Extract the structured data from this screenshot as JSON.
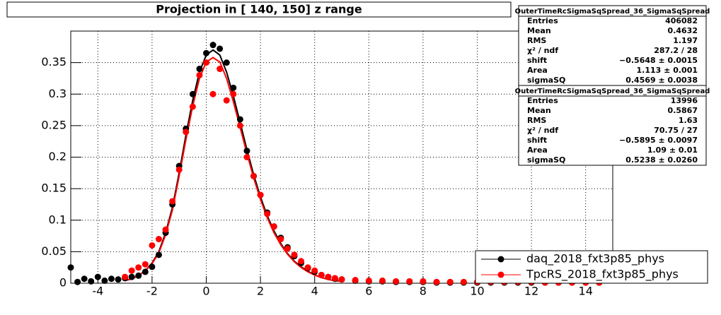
{
  "chart_data": {
    "type": "scatter",
    "title": "Projection in [ 140, 150] z range",
    "xlim": [
      -5,
      15
    ],
    "xticks": [
      -4,
      -2,
      0,
      2,
      4,
      6,
      8,
      10,
      12,
      14
    ],
    "ylim": [
      0,
      0.4
    ],
    "yticks": [
      0,
      0.05,
      0.1,
      0.15,
      0.2,
      0.25,
      0.3,
      0.35
    ],
    "grid": true,
    "legend": "bottom-right",
    "x": [
      -5,
      -4.75,
      -4.5,
      -4.25,
      -4,
      -3.75,
      -3.5,
      -3.25,
      -3,
      -2.75,
      -2.5,
      -2.25,
      -2,
      -1.75,
      -1.5,
      -1.25,
      -1,
      -0.75,
      -0.5,
      -0.25,
      0,
      0.25,
      0.5,
      0.75,
      1,
      1.25,
      1.5,
      1.75,
      2,
      2.25,
      2.5,
      2.75,
      3,
      3.25,
      3.5,
      3.75,
      4,
      4.25,
      4.5,
      4.75,
      5,
      5.5,
      6,
      6.5,
      7,
      7.5,
      8,
      8.5,
      9,
      9.5,
      10,
      10.5,
      11,
      11.5,
      12,
      12.5,
      13,
      13.5,
      14,
      14.5
    ],
    "series": [
      {
        "name": "daq_2018_fxt3p85_phys",
        "color": "#000000",
        "values": [
          0.025,
          0.002,
          0.007,
          0.003,
          0.01,
          0.004,
          0.007,
          0.006,
          0.008,
          0.01,
          0.012,
          0.018,
          0.026,
          0.045,
          0.08,
          0.125,
          0.186,
          0.245,
          0.3,
          0.34,
          0.365,
          0.378,
          0.372,
          0.35,
          0.31,
          0.26,
          0.21,
          0.17,
          0.14,
          0.112,
          0.09,
          0.072,
          0.057,
          0.043,
          0.032,
          0.024,
          0.018,
          0.013,
          0.01,
          0.007,
          0.006,
          0.004,
          0.003,
          0.003,
          0.002,
          0.002,
          0.002,
          0.001,
          0.001,
          0.001,
          0.001,
          0.001,
          0.001,
          0.001,
          0.001,
          0.001,
          0.001,
          0.001,
          0.001,
          0.001
        ]
      },
      {
        "name": "TpcRS_2018_fxt3p85_phys",
        "color": "#ff0000",
        "values": [
          null,
          null,
          null,
          null,
          null,
          null,
          null,
          null,
          0.01,
          0.02,
          0.025,
          0.03,
          0.06,
          0.07,
          0.085,
          0.13,
          0.18,
          0.24,
          0.28,
          0.33,
          0.35,
          0.3,
          0.34,
          0.29,
          0.3,
          0.25,
          0.2,
          0.17,
          0.14,
          0.11,
          0.09,
          0.07,
          0.055,
          0.045,
          0.035,
          0.025,
          0.02,
          0.013,
          0.01,
          0.008,
          0.006,
          0.005,
          0.004,
          0.004,
          0.003,
          0.003,
          0.003,
          0.002,
          0.002,
          0.002,
          0.002,
          0.002,
          0.002,
          0.002,
          0.002,
          0.001,
          0.001,
          0.001,
          0.001,
          0.001
        ]
      }
    ],
    "fits": [
      {
        "color": "#000000",
        "x": [
          -3,
          -2.75,
          -2.5,
          -2.25,
          -2,
          -1.75,
          -1.5,
          -1.25,
          -1,
          -0.75,
          -0.5,
          -0.25,
          0,
          0.25,
          0.5,
          0.75,
          1,
          1.25,
          1.5,
          1.75,
          2,
          2.25,
          2.5,
          2.75,
          3,
          3.25,
          3.5,
          3.75,
          4,
          4.25,
          4.5,
          4.75,
          5
        ],
        "values": [
          0.004,
          0.007,
          0.012,
          0.02,
          0.032,
          0.05,
          0.08,
          0.12,
          0.175,
          0.235,
          0.29,
          0.335,
          0.362,
          0.37,
          0.362,
          0.335,
          0.297,
          0.255,
          0.212,
          0.172,
          0.137,
          0.107,
          0.083,
          0.063,
          0.047,
          0.035,
          0.026,
          0.019,
          0.013,
          0.009,
          0.006,
          0.004,
          0.003
        ]
      },
      {
        "color": "#ff0000",
        "x": [
          -3,
          -2.75,
          -2.5,
          -2.25,
          -2,
          -1.75,
          -1.5,
          -1.25,
          -1,
          -0.75,
          -0.5,
          -0.25,
          0,
          0.25,
          0.5,
          0.75,
          1,
          1.25,
          1.5,
          1.75,
          2,
          2.25,
          2.5,
          2.75,
          3,
          3.25,
          3.5,
          3.75,
          4,
          4.25,
          4.5,
          4.75,
          5
        ],
        "values": [
          0.004,
          0.007,
          0.012,
          0.02,
          0.031,
          0.048,
          0.077,
          0.116,
          0.17,
          0.228,
          0.281,
          0.325,
          0.351,
          0.358,
          0.351,
          0.325,
          0.288,
          0.247,
          0.206,
          0.167,
          0.133,
          0.104,
          0.08,
          0.061,
          0.046,
          0.034,
          0.025,
          0.018,
          0.013,
          0.009,
          0.006,
          0.004,
          0.003
        ]
      }
    ]
  },
  "stats": [
    {
      "header": "OuterTimeRcSigmaSqSpread_36_SigmaSqSpread",
      "rows": [
        [
          "Entries",
          "406082"
        ],
        [
          "Mean",
          "0.4632"
        ],
        [
          "RMS",
          "1.197"
        ],
        [
          "χ² / ndf",
          "287.2 / 28"
        ],
        [
          "shift",
          "−0.5648 ± 0.0015"
        ],
        [
          "Area",
          "1.113 ± 0.001"
        ],
        [
          "sigmaSQ",
          "0.4569 ± 0.0038"
        ]
      ]
    },
    {
      "header": "OuterTimeRcSigmaSqSpread_36_SigmaSqSpread",
      "rows": [
        [
          "Entries",
          "13996"
        ],
        [
          "Mean",
          "0.5867"
        ],
        [
          "RMS",
          "1.63"
        ],
        [
          "χ² / ndf",
          "70.75 / 27"
        ],
        [
          "shift",
          "−0.5895 ± 0.0097"
        ],
        [
          "Area",
          "1.09 ± 0.01"
        ],
        [
          "sigmaSQ",
          "0.5238 ± 0.0260"
        ]
      ]
    }
  ]
}
